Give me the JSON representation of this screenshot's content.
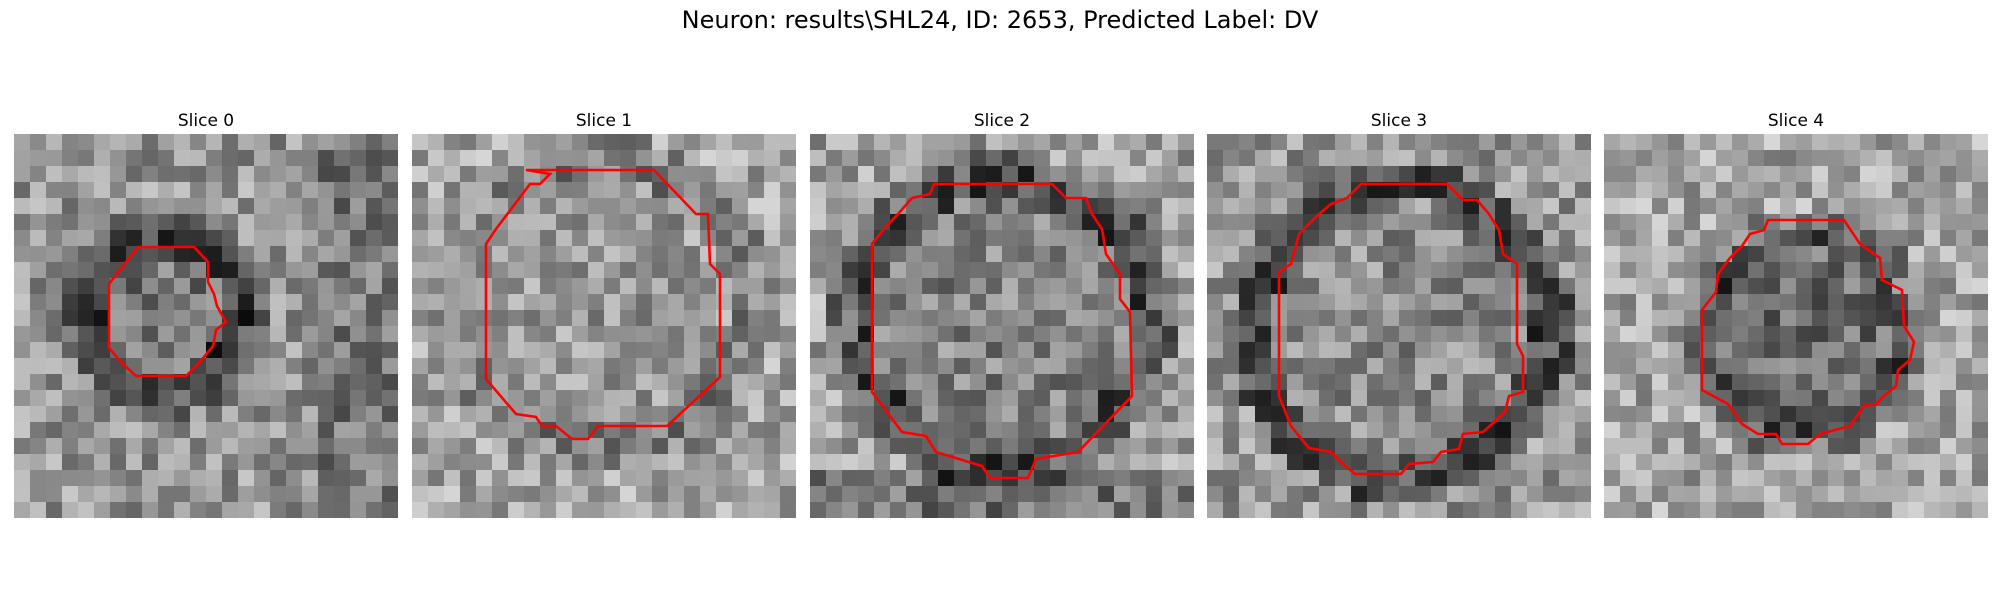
{
  "figure": {
    "title": "Neuron: results\\SHL24, ID: 2653, Predicted Label: DV",
    "contour_color": "#ff0000"
  },
  "slices": [
    {
      "label": "Slice 0"
    },
    {
      "label": "Slice 1"
    },
    {
      "label": "Slice 2"
    },
    {
      "label": "Slice 3"
    },
    {
      "label": "Slice 4"
    }
  ]
}
